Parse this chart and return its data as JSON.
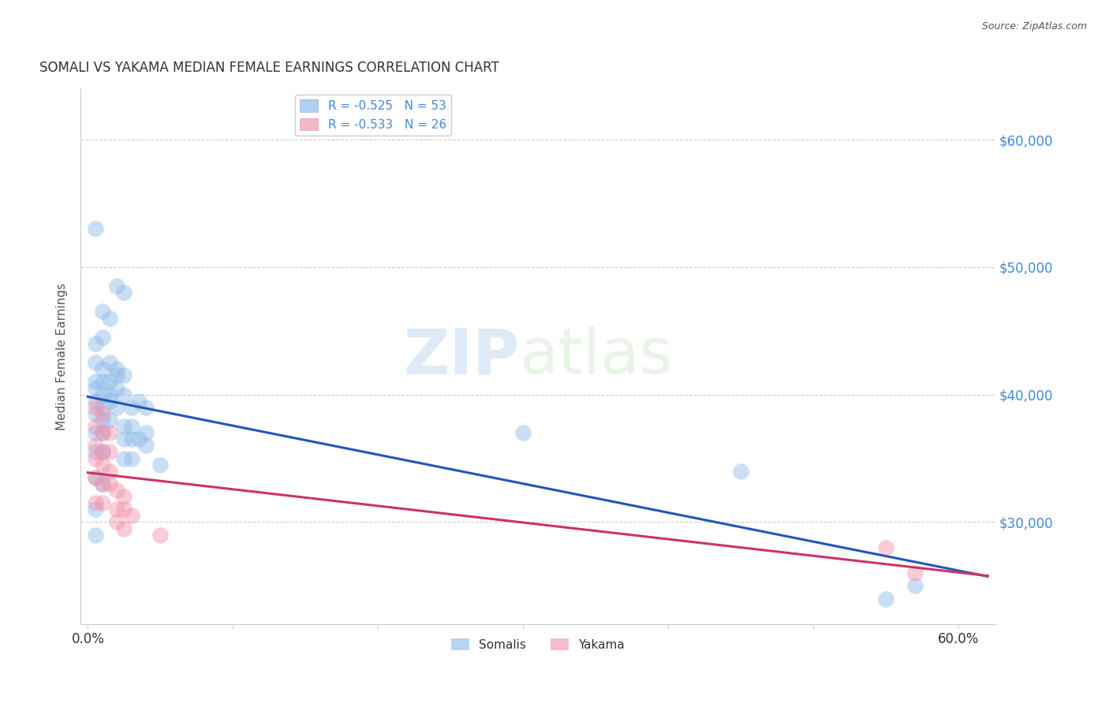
{
  "title": "SOMALI VS YAKAMA MEDIAN FEMALE EARNINGS CORRELATION CHART",
  "source": "Source: ZipAtlas.com",
  "ylabel": "Median Female Earnings",
  "x_tick_labels_shown": [
    "0.0%",
    "60.0%"
  ],
  "x_tick_values": [
    0.0,
    0.1,
    0.2,
    0.3,
    0.4,
    0.5,
    0.6
  ],
  "y_tick_labels": [
    "$30,000",
    "$40,000",
    "$50,000",
    "$60,000"
  ],
  "y_tick_values": [
    30000,
    40000,
    50000,
    60000
  ],
  "ylim": [
    22000,
    64000
  ],
  "xlim": [
    -0.005,
    0.625
  ],
  "legend_entries": [
    {
      "label": "R = -0.525   N = 53",
      "color_fill": "#aed0f5",
      "color_text": "#4472c4"
    },
    {
      "label": "R = -0.533   N = 26",
      "color_fill": "#f5b8c8",
      "color_text": "#d44472"
    }
  ],
  "legend_bottom": [
    "Somalis",
    "Yakama"
  ],
  "somali_color": "#8ab8e8",
  "yakama_color": "#f090aa",
  "trendline_somali_color": "#2255bb",
  "trendline_yakama_color": "#cc3366",
  "watermark_zip": "ZIP",
  "watermark_atlas": "atlas",
  "background_color": "#ffffff",
  "grid_color": "#cccccc",
  "right_tick_color": "#4488dd",
  "somali_points": [
    [
      0.005,
      53000
    ],
    [
      0.01,
      46500
    ],
    [
      0.015,
      46000
    ],
    [
      0.02,
      48500
    ],
    [
      0.025,
      48000
    ],
    [
      0.005,
      44000
    ],
    [
      0.01,
      44500
    ],
    [
      0.005,
      42500
    ],
    [
      0.01,
      42000
    ],
    [
      0.015,
      42500
    ],
    [
      0.02,
      42000
    ],
    [
      0.025,
      41500
    ],
    [
      0.005,
      41000
    ],
    [
      0.01,
      41000
    ],
    [
      0.015,
      41000
    ],
    [
      0.02,
      41500
    ],
    [
      0.005,
      40500
    ],
    [
      0.01,
      40000
    ],
    [
      0.015,
      40000
    ],
    [
      0.02,
      40500
    ],
    [
      0.025,
      40000
    ],
    [
      0.005,
      39500
    ],
    [
      0.01,
      39000
    ],
    [
      0.015,
      39500
    ],
    [
      0.02,
      39000
    ],
    [
      0.03,
      39000
    ],
    [
      0.035,
      39500
    ],
    [
      0.04,
      39000
    ],
    [
      0.005,
      38500
    ],
    [
      0.01,
      38000
    ],
    [
      0.015,
      38000
    ],
    [
      0.025,
      37500
    ],
    [
      0.03,
      37500
    ],
    [
      0.04,
      37000
    ],
    [
      0.005,
      37000
    ],
    [
      0.01,
      37000
    ],
    [
      0.025,
      36500
    ],
    [
      0.03,
      36500
    ],
    [
      0.035,
      36500
    ],
    [
      0.04,
      36000
    ],
    [
      0.005,
      35500
    ],
    [
      0.01,
      35500
    ],
    [
      0.025,
      35000
    ],
    [
      0.03,
      35000
    ],
    [
      0.05,
      34500
    ],
    [
      0.005,
      33500
    ],
    [
      0.01,
      33000
    ],
    [
      0.005,
      31000
    ],
    [
      0.005,
      29000
    ],
    [
      0.3,
      37000
    ],
    [
      0.45,
      34000
    ],
    [
      0.55,
      24000
    ],
    [
      0.57,
      25000
    ]
  ],
  "yakama_points": [
    [
      0.005,
      39000
    ],
    [
      0.01,
      38500
    ],
    [
      0.005,
      37500
    ],
    [
      0.01,
      37000
    ],
    [
      0.015,
      37000
    ],
    [
      0.005,
      36000
    ],
    [
      0.01,
      35500
    ],
    [
      0.015,
      35500
    ],
    [
      0.005,
      35000
    ],
    [
      0.01,
      34500
    ],
    [
      0.015,
      34000
    ],
    [
      0.005,
      33500
    ],
    [
      0.01,
      33000
    ],
    [
      0.015,
      33000
    ],
    [
      0.02,
      32500
    ],
    [
      0.025,
      32000
    ],
    [
      0.005,
      31500
    ],
    [
      0.01,
      31500
    ],
    [
      0.02,
      31000
    ],
    [
      0.025,
      31000
    ],
    [
      0.03,
      30500
    ],
    [
      0.02,
      30000
    ],
    [
      0.025,
      29500
    ],
    [
      0.05,
      29000
    ],
    [
      0.55,
      28000
    ],
    [
      0.57,
      26000
    ]
  ]
}
